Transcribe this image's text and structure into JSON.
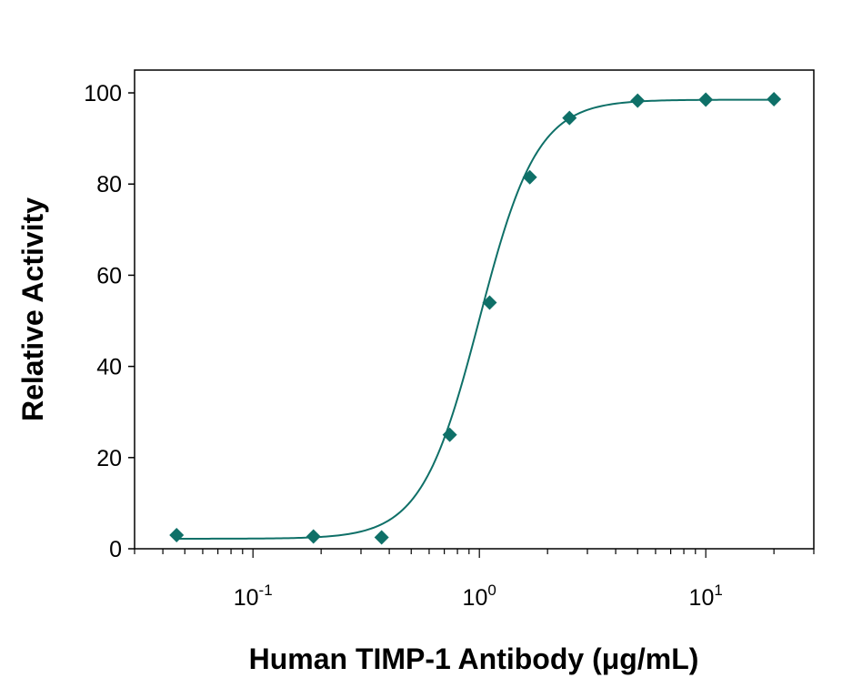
{
  "chart_data": {
    "type": "scatter",
    "title": "",
    "xlabel": "Human TIMP-1 Antibody (μg/mL)",
    "ylabel": "Relative Activity",
    "x_scale": "log",
    "xlim": [
      0.03,
      30
    ],
    "ylim": [
      0,
      105
    ],
    "x_ticks": [
      {
        "value": 0.1,
        "base": "10",
        "exp": "-1"
      },
      {
        "value": 1,
        "base": "10",
        "exp": "0"
      },
      {
        "value": 10,
        "base": "10",
        "exp": "1"
      }
    ],
    "y_ticks": [
      0,
      20,
      40,
      60,
      80,
      100
    ],
    "grid": false,
    "legend": "none",
    "color": "#0f7068",
    "series": [
      {
        "x": [
          0.046,
          0.185,
          0.37,
          0.74,
          1.11,
          1.67,
          2.5,
          5.0,
          10.0,
          20.0
        ],
        "y": [
          3,
          2.7,
          2.5,
          25,
          54,
          81.5,
          94.5,
          98.3,
          98.5,
          98.6
        ]
      }
    ],
    "fit_curve": {
      "bottom": 2.2,
      "top": 98.5,
      "ec50": 1.0,
      "hill": 3.4
    }
  }
}
